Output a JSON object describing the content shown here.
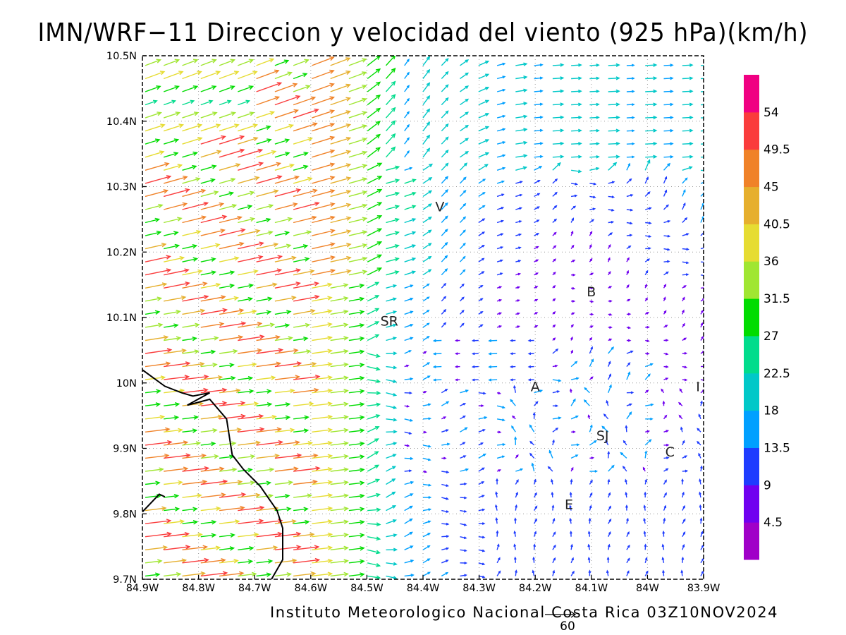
{
  "title": "IMN/WRF−11 Direccion y velocidad del viento (925 hPa)(km/h)",
  "footer": "Instituto Meteorologico Nacional Costa Rica 03Z10NOV2024",
  "ref_vector_label": "60",
  "colors": {
    "coast": "#000000",
    "grid": "#999999",
    "levels": [
      "#a000c8",
      "#7000f0",
      "#1e3cff",
      "#00a0ff",
      "#00c8c8",
      "#00dc8c",
      "#00dc00",
      "#a0e632",
      "#e6dc32",
      "#e6af2d",
      "#f08228",
      "#fa3c3c",
      "#f00082"
    ]
  },
  "chart_data": {
    "type": "vector field",
    "xlabel": "",
    "ylabel": "",
    "x_ticks": [
      "84.9W",
      "84.8W",
      "84.7W",
      "84.6W",
      "84.5W",
      "84.4W",
      "84.3W",
      "84.2W",
      "84.1W",
      "84W",
      "83.9W"
    ],
    "y_ticks": [
      "9.7N",
      "9.8N",
      "9.9N",
      "10N",
      "10.1N",
      "10.2N",
      "10.3N",
      "10.4N",
      "10.5N"
    ],
    "xlim": [
      -84.9,
      -83.9
    ],
    "ylim": [
      9.7,
      10.5
    ],
    "colorbar": {
      "labels": [
        "4.5",
        "9",
        "13.5",
        "18",
        "22.5",
        "27",
        "31.5",
        "36",
        "40.5",
        "45",
        "49.5",
        "54"
      ],
      "units": "km/h"
    },
    "stations": [
      {
        "label": "V",
        "lon": -84.37,
        "lat": 10.27
      },
      {
        "label": "B",
        "lon": -84.1,
        "lat": 10.14
      },
      {
        "label": "SR",
        "lon": -84.46,
        "lat": 10.095
      },
      {
        "label": "A",
        "lon": -84.2,
        "lat": 9.995
      },
      {
        "label": "I",
        "lon": -83.91,
        "lat": 9.995
      },
      {
        "label": "SJ",
        "lon": -84.08,
        "lat": 9.92
      },
      {
        "label": "C",
        "lon": -83.96,
        "lat": 9.895
      },
      {
        "label": "E",
        "lon": -84.14,
        "lat": 9.815
      }
    ],
    "coastline": [
      [
        -84.9,
        10.02
      ],
      [
        -84.86,
        9.995
      ],
      [
        -84.83,
        9.985
      ],
      [
        -84.81,
        9.98
      ],
      [
        -84.78,
        9.985
      ],
      [
        -84.82,
        9.966
      ],
      [
        -84.78,
        9.975
      ],
      [
        -84.75,
        9.945
      ],
      [
        -84.74,
        9.89
      ],
      [
        -84.72,
        9.868
      ],
      [
        -84.69,
        9.842
      ],
      [
        -84.66,
        9.805
      ],
      [
        -84.65,
        9.778
      ],
      [
        -84.65,
        9.73
      ],
      [
        -84.67,
        9.7
      ]
    ],
    "coastline_islet": [
      [
        -84.9,
        9.803
      ],
      [
        -84.87,
        9.83
      ],
      [
        -84.86,
        9.826
      ]
    ],
    "wind_description": "Strong westerly winds (40-54 km/h) over the Pacific west of 84.6W, light variable winds (<13.5 km/h) over the Central Valley near 84.1W-84.2W",
    "vector_grid": {
      "lon_spacing": 0.033,
      "lat_spacing": 0.02
    },
    "reference_vector_kmh": 60
  }
}
